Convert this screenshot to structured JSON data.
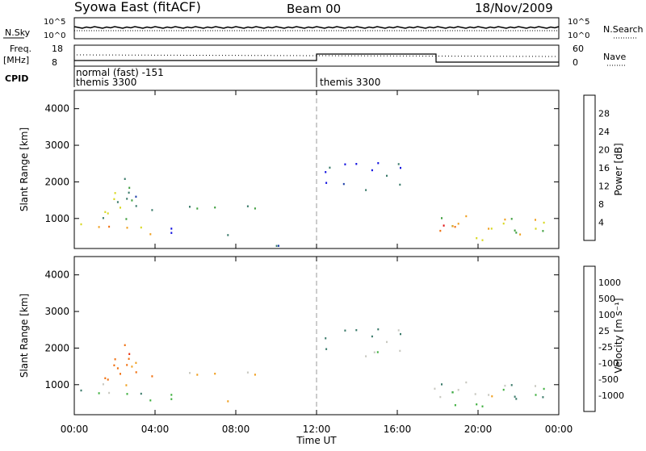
{
  "header": {
    "station": "Syowa East (fitACF)",
    "beam": "Beam 00",
    "date": "18/Nov/2009"
  },
  "panel_labels": {
    "nsky": "N.Sky",
    "nsearch": "N.Search",
    "freq": "Freq.",
    "freq_unit": "[MHz]",
    "nave": "Nave",
    "cpid": "CPID"
  },
  "noise_ticks_left": [
    "10^5",
    "10^0"
  ],
  "noise_ticks_right": [
    "10^5",
    "10^0"
  ],
  "freq_ticks_left": [
    "18",
    "8"
  ],
  "nave_ticks_right": [
    "60",
    "0"
  ],
  "cpid_entries": [
    {
      "name": "normal (fast) -151"
    },
    {
      "name": "themis 3300"
    },
    {
      "name": "themis 3300"
    }
  ],
  "axes": {
    "ylabel": "Slant Range [km]",
    "xlabel": "Time UT",
    "yticks": [
      "1000",
      "2000",
      "3000",
      "4000"
    ],
    "xticks": [
      "00:00",
      "04:00",
      "08:00",
      "12:00",
      "16:00",
      "20:00",
      "00:00"
    ]
  },
  "colorbars": {
    "power": {
      "label": "Power [dB]",
      "ticks": [
        "4",
        "8",
        "12",
        "16",
        "20",
        "24",
        "28"
      ],
      "colors": [
        "#1010e0",
        "#1e3fa8",
        "#3a7a6a",
        "#40a040",
        "#d8d820",
        "#f0a020",
        "#f07010",
        "#e01010"
      ]
    },
    "velocity": {
      "label": "Velocity [m s⁻¹]",
      "ticks": [
        "1000",
        "500",
        "100",
        "25",
        "-25",
        "-100",
        "-500",
        "-1000"
      ],
      "colors": [
        "#1e3fa8",
        "#3060b0",
        "#3a7a6a",
        "#40b040",
        "#c8c8c0",
        "#f0a020",
        "#f07010",
        "#e83010",
        "#e01010"
      ]
    }
  },
  "chart_data": [
    {
      "type": "heatmap",
      "title": "Power",
      "x_range_hours": [
        0,
        24
      ],
      "ylim": [
        180,
        4500
      ],
      "clusters": [
        {
          "t": [
            0.3,
            4.5
          ],
          "r": [
            500,
            900
          ],
          "level": 5
        },
        {
          "t": [
            0.6,
            3.0
          ],
          "r": [
            900,
            1800
          ],
          "level": 3
        },
        {
          "t": [
            2.0,
            4.0
          ],
          "r": [
            1200,
            2200
          ],
          "level": 2
        },
        {
          "t": [
            4.5,
            9.2
          ],
          "r": [
            1200,
            1450
          ],
          "level": 2
        },
        {
          "t": [
            4.5,
            8.0
          ],
          "r": [
            550,
            750
          ],
          "level": 1
        },
        {
          "t": [
            8.5,
            11.0
          ],
          "r": [
            250,
            450
          ],
          "level": 1
        },
        {
          "t": [
            12.4,
            16.5
          ],
          "r": [
            1800,
            2600
          ],
          "level": 1
        },
        {
          "t": [
            17.5,
            23.5
          ],
          "r": [
            300,
            1100
          ],
          "level": 4
        },
        {
          "t": [
            18.0,
            21.5
          ],
          "r": [
            600,
            900
          ],
          "level": 6
        }
      ]
    },
    {
      "type": "heatmap",
      "title": "Velocity",
      "x_range_hours": [
        0,
        24
      ],
      "ylim": [
        180,
        4500
      ],
      "clusters": [
        {
          "t": [
            0.3,
            4.5
          ],
          "r": [
            500,
            900
          ],
          "level": 3
        },
        {
          "t": [
            0.6,
            3.0
          ],
          "r": [
            900,
            1800
          ],
          "level": 5
        },
        {
          "t": [
            2.0,
            4.0
          ],
          "r": [
            1200,
            2200
          ],
          "level": 6
        },
        {
          "t": [
            4.5,
            9.2
          ],
          "r": [
            1200,
            1450
          ],
          "level": 4
        },
        {
          "t": [
            4.5,
            8.0
          ],
          "r": [
            550,
            750
          ],
          "level": 4
        },
        {
          "t": [
            12.4,
            16.5
          ],
          "r": [
            1800,
            2600
          ],
          "level": 3
        },
        {
          "t": [
            17.5,
            23.5
          ],
          "r": [
            300,
            1100
          ],
          "level": 3
        },
        {
          "t": [
            18.0,
            21.5
          ],
          "r": [
            600,
            900
          ],
          "level": 4
        }
      ]
    }
  ]
}
